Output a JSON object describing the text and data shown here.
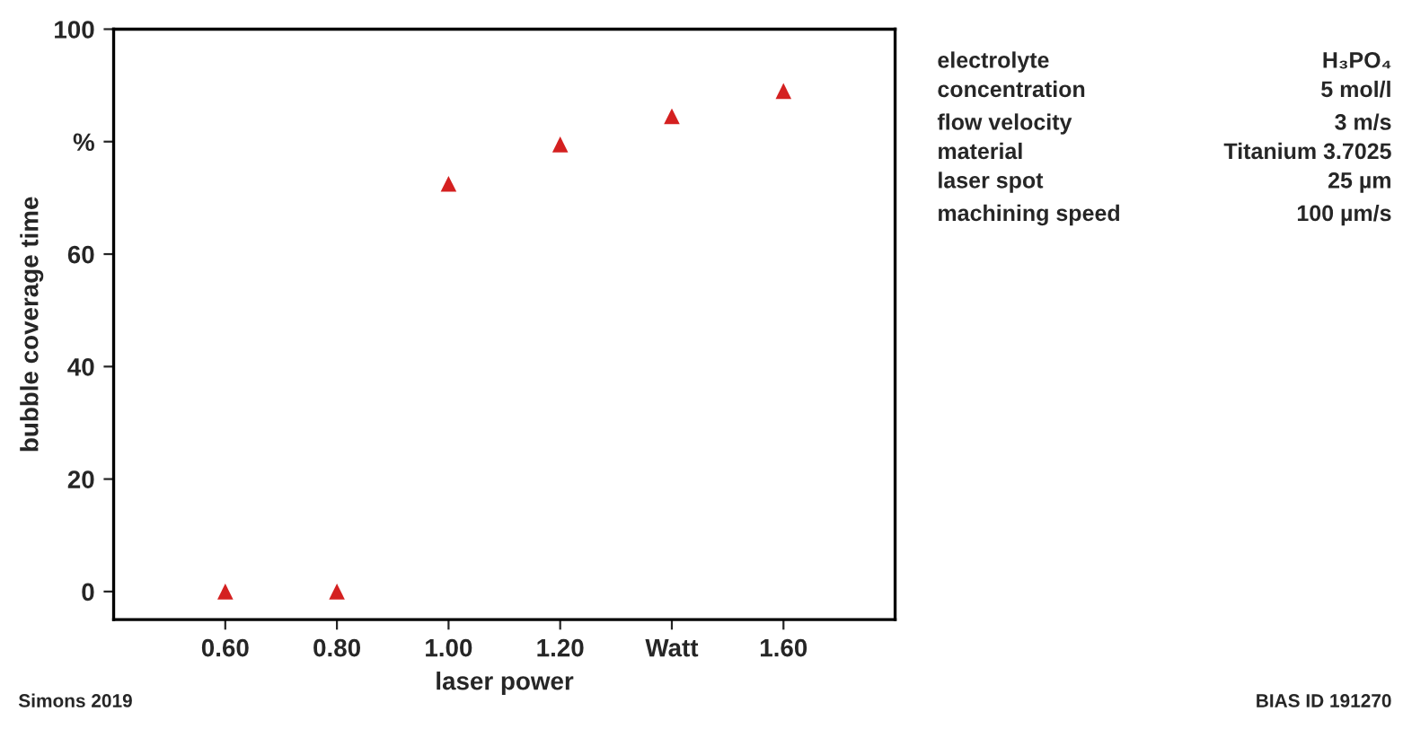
{
  "chart_data": {
    "type": "scatter",
    "x": [
      0.6,
      0.8,
      1.0,
      1.2,
      1.4,
      1.6
    ],
    "series": [
      {
        "color": "#d42020",
        "values": [
          0,
          0,
          72.5,
          79.5,
          84.5,
          89
        ]
      }
    ],
    "marker": "triangle",
    "xlim": [
      0.4,
      1.8
    ],
    "xticks": [
      {
        "value": 0.6,
        "label": "0.60"
      },
      {
        "value": 0.8,
        "label": "0.80"
      },
      {
        "value": 1.0,
        "label": "1.00"
      },
      {
        "value": 1.2,
        "label": "1.20"
      },
      {
        "value": 1.4,
        "label": "Watt"
      },
      {
        "value": 1.6,
        "label": "1.60"
      }
    ],
    "ylim": [
      -5,
      100
    ],
    "yticks": [
      0,
      20,
      40,
      60,
      {
        "value": 80,
        "label": "%"
      },
      100
    ],
    "xlabel": "laser power",
    "ylabel": "bubble coverage time",
    "annotations": [
      "electrolyte",
      "H₃PO₄",
      "concentration",
      "5 mol/l",
      "flow velocity",
      "3 m/s",
      "material",
      "Titanium 3.7025",
      "laser spot",
      "25 µm",
      "machining speed",
      "100 µm/s",
      "Simons 2019",
      "BIAS ID 191270"
    ]
  }
}
